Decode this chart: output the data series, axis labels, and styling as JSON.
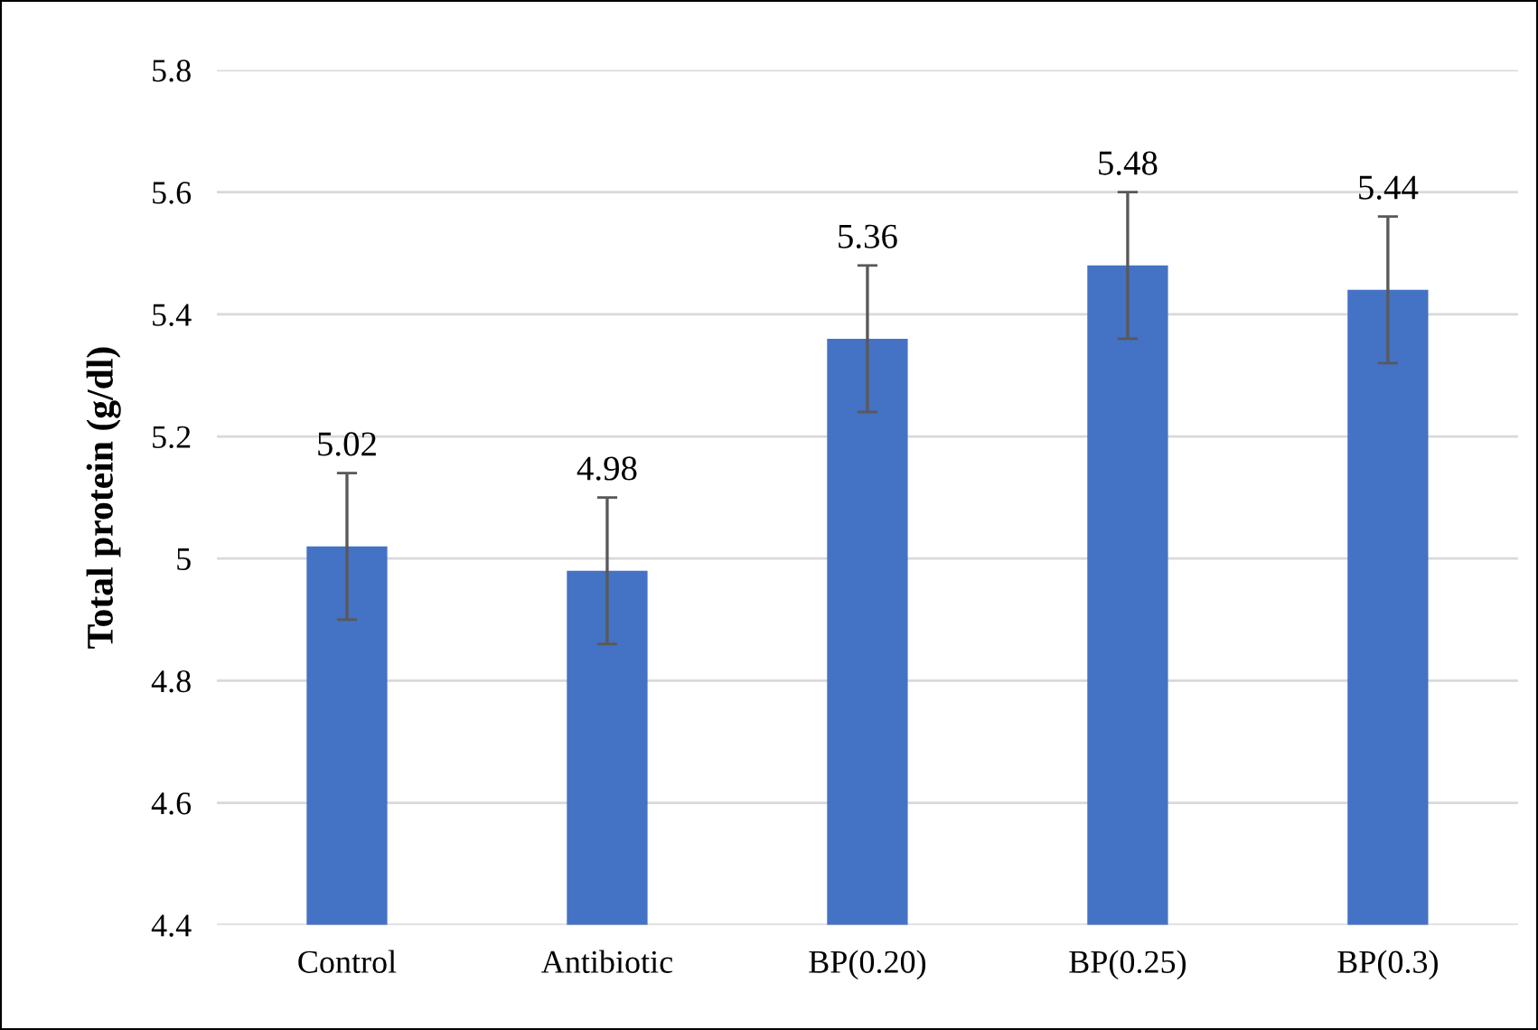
{
  "chart_data": {
    "type": "bar",
    "ylabel": "Total protein (g/dl)",
    "categories": [
      "Control",
      "Antibiotic",
      "BP(0.20)",
      "BP(0.25)",
      "BP(0.3)"
    ],
    "values": [
      5.02,
      4.98,
      5.36,
      5.48,
      5.44
    ],
    "errors": [
      0.12,
      0.12,
      0.12,
      0.12,
      0.12
    ],
    "color": "#4472c4",
    "ylim": [
      4.4,
      5.8
    ],
    "yticks": [
      4.4,
      4.6,
      4.8,
      5,
      5.2,
      5.4,
      5.6,
      5.8
    ],
    "grid": "y",
    "data_labels": true
  }
}
